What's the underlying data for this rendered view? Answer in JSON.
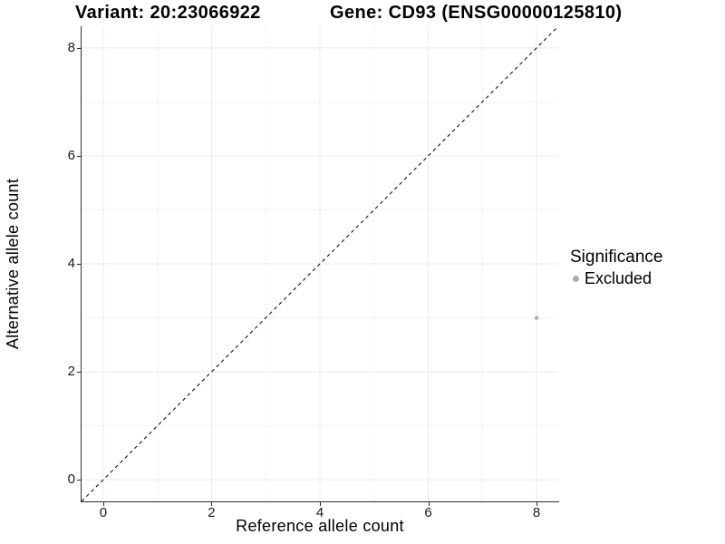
{
  "chart_data": {
    "type": "scatter",
    "title_left": "Variant: 20:23066922",
    "title_right": "Gene: CD93 (ENSG00000125810)",
    "xlabel": "Reference allele count",
    "ylabel": "Alternative allele count",
    "xlim": [
      -0.4,
      8.4
    ],
    "ylim": [
      -0.4,
      8.4
    ],
    "x_ticks": [
      0,
      2,
      4,
      6,
      8
    ],
    "y_ticks": [
      0,
      2,
      4,
      6,
      8
    ],
    "x_minor_ticks": [
      1,
      3,
      5,
      7
    ],
    "y_minor_ticks": [
      1,
      3,
      5,
      7
    ],
    "grid": true,
    "legend_title": "Significance",
    "legend_position": "right",
    "series": [
      {
        "name": "Excluded",
        "color": "#ACACAC",
        "points": [
          {
            "x": 8,
            "y": 3
          }
        ]
      }
    ],
    "reference_line": {
      "type": "identity",
      "slope": 1,
      "intercept": 0,
      "style": "dashed",
      "color": "#000000"
    }
  },
  "colors": {
    "background": "#FFFFFF",
    "grid_major": "#EBEBEB",
    "grid_minor": "#F4F4F4",
    "axis_line": "#2E2E2E",
    "tick_text": "#1A1A1A",
    "title_text": "#000000",
    "point": "#ACACAC"
  }
}
